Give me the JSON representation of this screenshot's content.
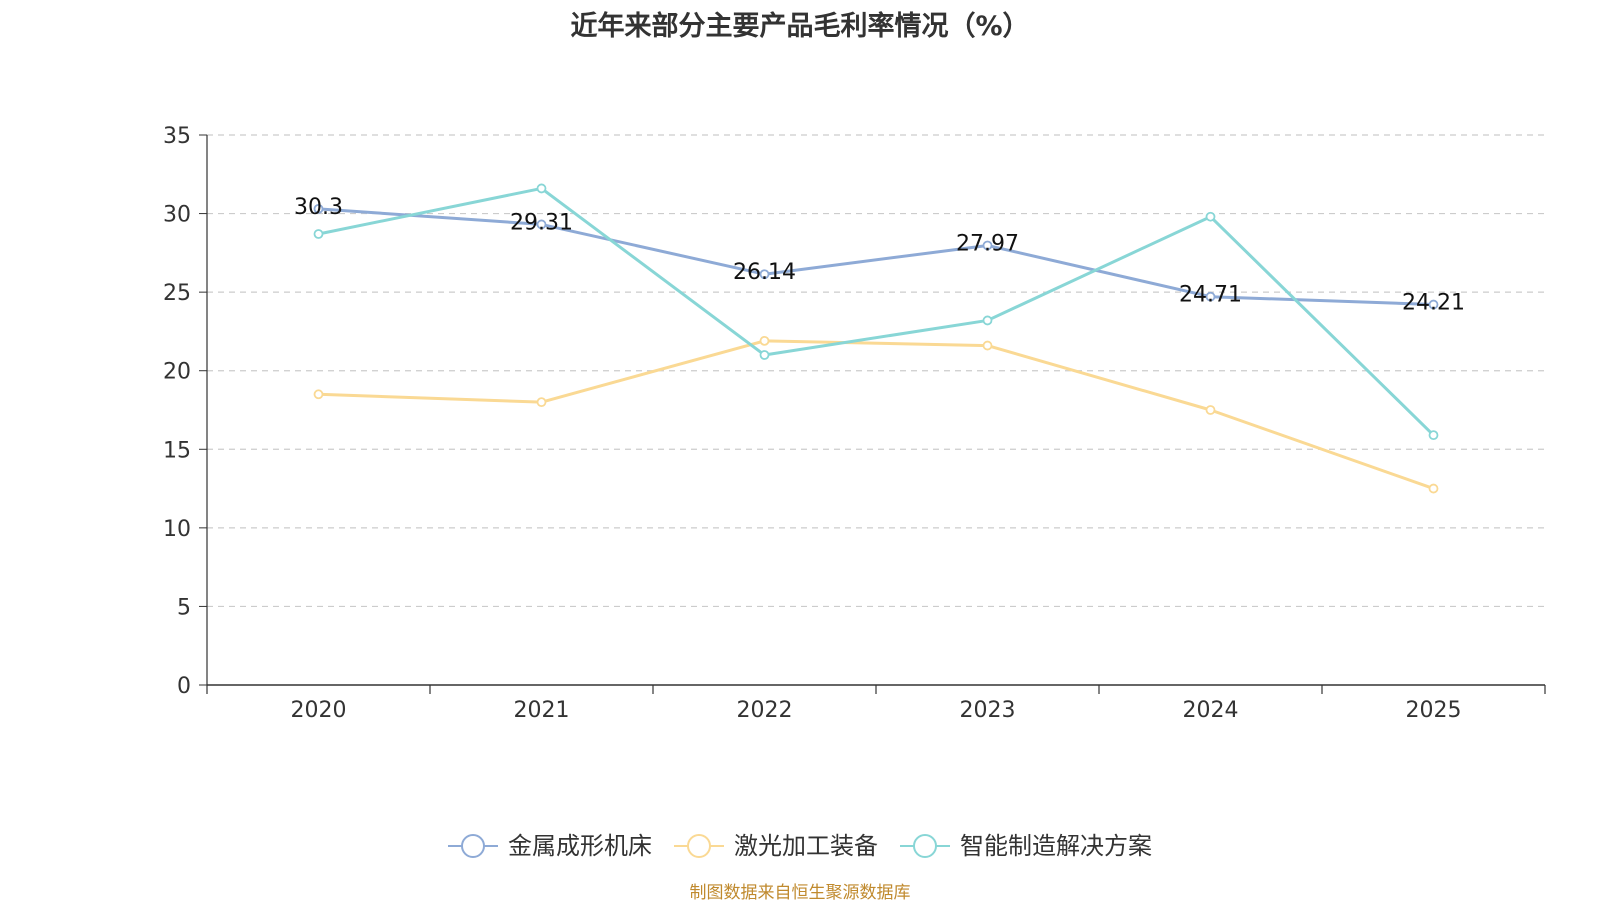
{
  "chart_data": {
    "type": "line",
    "title": "近年来部分主要产品毛利率情况（%）",
    "categories": [
      "2020",
      "2021",
      "2022",
      "2023",
      "2024",
      "2025"
    ],
    "ylim": [
      0,
      35
    ],
    "yticks": [
      0,
      5,
      10,
      15,
      20,
      25,
      30,
      35
    ],
    "grid": "horizontal dashed",
    "legend_position": "bottom",
    "series": [
      {
        "name": "金属成形机床",
        "color": "#8eaad6",
        "values": [
          30.3,
          29.31,
          26.14,
          27.97,
          24.71,
          24.21
        ],
        "labels": [
          "30.3",
          "29.31",
          "26.14",
          "27.97",
          "24.71",
          "24.21"
        ]
      },
      {
        "name": "激光加工装备",
        "color": "#fad994",
        "values": [
          18.5,
          18.0,
          21.9,
          21.6,
          17.5,
          12.5
        ]
      },
      {
        "name": "智能制造解决方案",
        "color": "#88d6d6",
        "values": [
          28.7,
          31.6,
          21.0,
          23.2,
          29.8,
          15.9
        ]
      }
    ]
  },
  "source": "制图数据来自恒生聚源数据库"
}
